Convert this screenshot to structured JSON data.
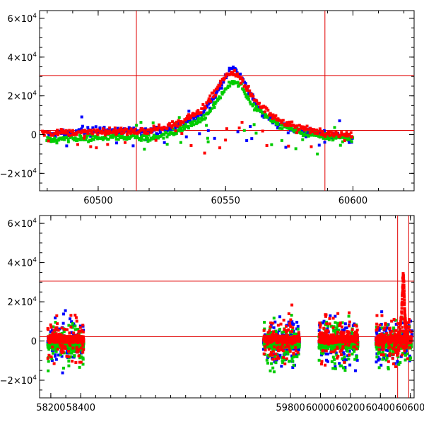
{
  "chart_data": [
    {
      "type": "scatter",
      "xlim": [
        60477,
        60624
      ],
      "ylim": [
        -29000,
        64000
      ],
      "x_ticks": [
        "60500",
        "60550",
        "60600"
      ],
      "y_ticks": [
        {
          "value": 60000,
          "mant": "6×10",
          "exp": "4"
        },
        {
          "value": 40000,
          "mant": "4×10",
          "exp": "4"
        },
        {
          "value": 20000,
          "mant": "2×10",
          "exp": "4"
        },
        {
          "value": 0,
          "mant": "0",
          "exp": ""
        },
        {
          "value": -20000,
          "mant": "−2×10",
          "exp": "4"
        }
      ],
      "hlines": [
        30500,
        2200
      ],
      "vlines": [
        60515,
        60589
      ],
      "series": [
        {
          "color": "#0000ff",
          "x": [
            60480,
            60490,
            60500,
            60510,
            60520,
            60530,
            60540,
            60545,
            60550,
            60553,
            60556,
            60560,
            60565,
            60570,
            60580,
            60590,
            60600
          ],
          "y": [
            0,
            1000,
            2500,
            1500,
            2000,
            4000,
            10000,
            18000,
            30000,
            35000,
            30000,
            20000,
            10000,
            6000,
            2000,
            0,
            -2000
          ]
        },
        {
          "color": "#00cc00",
          "x": [
            60480,
            60495,
            60510,
            60520,
            60530,
            60540,
            60545,
            60550,
            60553,
            60556,
            60560,
            60570,
            60580,
            60590,
            60600
          ],
          "y": [
            -3000,
            -2000,
            -1000,
            -2000,
            1000,
            7000,
            14000,
            24000,
            27000,
            25000,
            16000,
            6000,
            1000,
            -1000,
            -2000
          ]
        },
        {
          "color": "#ff0000",
          "x": [
            60478,
            60485,
            60490,
            60500,
            60510,
            60515,
            60520,
            60530,
            60540,
            60545,
            60550,
            60553,
            60556,
            60560,
            60565,
            60570,
            60580,
            60590,
            60600
          ],
          "y": [
            500,
            900,
            1200,
            1500,
            1800,
            1500,
            2000,
            5000,
            12000,
            20000,
            30000,
            32500,
            29000,
            21000,
            13000,
            8000,
            3000,
            1000,
            0
          ]
        }
      ]
    },
    {
      "type": "scatter",
      "xlim": [
        58125,
        60625
      ],
      "ylim": [
        -29000,
        64000
      ],
      "x_ticks": [
        "58200",
        "58400",
        "59800",
        "60000",
        "60200",
        "60400",
        "60600"
      ],
      "y_ticks": [
        {
          "value": 60000,
          "mant": "6×10",
          "exp": "4"
        },
        {
          "value": 40000,
          "mant": "4×10",
          "exp": "4"
        },
        {
          "value": 20000,
          "mant": "2×10",
          "exp": "4"
        },
        {
          "value": 0,
          "mant": "0",
          "exp": ""
        },
        {
          "value": -20000,
          "mant": "−2×10",
          "exp": "4"
        }
      ],
      "hlines": [
        30500,
        2200
      ],
      "vlines": [
        60515,
        60589
      ],
      "series": [
        {
          "color": "#0000ff",
          "segments": [
            [
              58180,
              58420
            ],
            [
              59620,
              59860
            ],
            [
              59990,
              60250
            ],
            [
              60370,
              60610
            ]
          ],
          "base": 0
        },
        {
          "color": "#00cc00",
          "segments": [
            [
              58180,
              58420
            ],
            [
              59620,
              59860
            ],
            [
              59990,
              60250
            ],
            [
              60370,
              60610
            ]
          ],
          "base": -2000
        },
        {
          "color": "#ff0000",
          "segments": [
            [
              58180,
              58420
            ],
            [
              59620,
              59860
            ],
            [
              59990,
              60250
            ],
            [
              60370,
              60610
            ]
          ],
          "base": 1000
        },
        {
          "color": "#ff0000",
          "x": [
            60500,
            60520,
            60530,
            60540,
            60545,
            60550,
            60553,
            60556,
            60560,
            60565,
            60570,
            60590,
            60600
          ],
          "y": [
            1000,
            3000,
            6000,
            12000,
            20000,
            30000,
            34000,
            30000,
            21000,
            12000,
            7000,
            1000,
            0
          ]
        }
      ]
    }
  ]
}
